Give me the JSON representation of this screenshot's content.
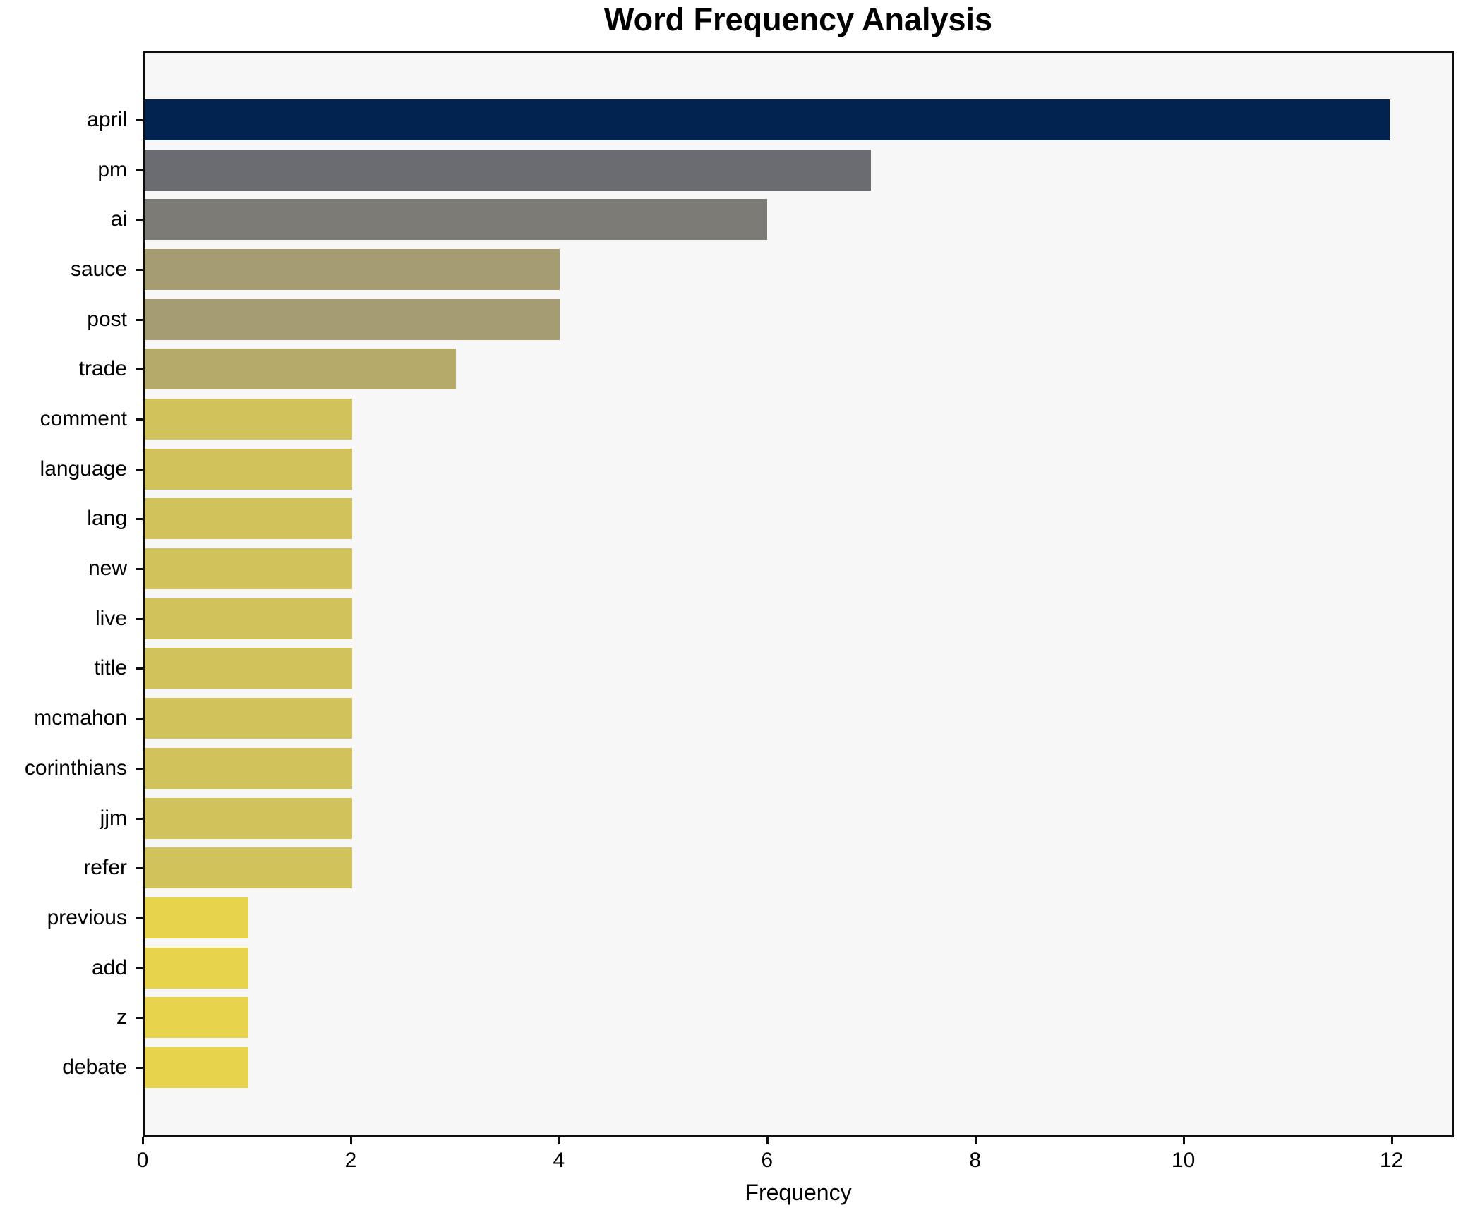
{
  "chart_data": {
    "type": "bar",
    "orientation": "horizontal",
    "title": "Word Frequency Analysis",
    "xlabel": "Frequency",
    "ylabel": "",
    "categories": [
      "april",
      "pm",
      "ai",
      "sauce",
      "post",
      "trade",
      "comment",
      "language",
      "lang",
      "new",
      "live",
      "title",
      "mcmahon",
      "corinthians",
      "jjm",
      "refer",
      "previous",
      "add",
      "z",
      "debate"
    ],
    "values": [
      12,
      7,
      6,
      4,
      4,
      3,
      2,
      2,
      2,
      2,
      2,
      2,
      2,
      2,
      2,
      2,
      1,
      1,
      1,
      1
    ],
    "bar_colors": [
      "#022250",
      "#6a6c71",
      "#7c7b76",
      "#a59c72",
      "#a59c72",
      "#b5aa6a",
      "#d2c25c",
      "#d2c25c",
      "#d2c25c",
      "#d2c25c",
      "#d2c25c",
      "#d2c25c",
      "#d2c25c",
      "#d2c25c",
      "#d2c25c",
      "#d2c25c",
      "#e8d44c",
      "#e8d44c",
      "#e8d44c",
      "#e8d44c"
    ],
    "xticks": [
      0,
      2,
      4,
      6,
      8,
      10,
      12
    ],
    "xlim": [
      0,
      12.6
    ],
    "grid": false,
    "legend": false,
    "colormap": "cividis (dark navy = highest frequency, yellow = lowest)",
    "plot_background": "#f7f7f8",
    "spine_color": "#0d0d0d"
  }
}
